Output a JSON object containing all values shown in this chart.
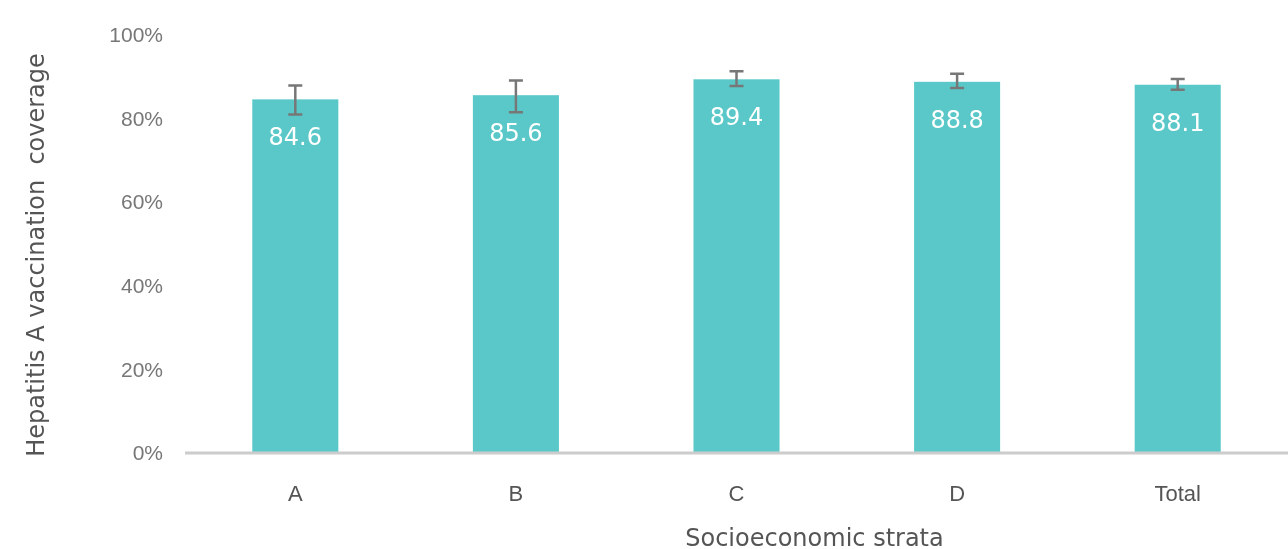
{
  "chart_data": {
    "type": "bar",
    "xlabel": "Socioeconomic strata",
    "ylabel": "Hepatitis A vaccination  coverage",
    "categories": [
      "A",
      "B",
      "C",
      "D",
      "Total"
    ],
    "values": [
      84.6,
      85.6,
      89.4,
      88.8,
      88.1
    ],
    "errors": [
      [
        81.0,
        87.9
      ],
      [
        81.5,
        89.1
      ],
      [
        87.8,
        91.3
      ],
      [
        87.3,
        90.7
      ],
      [
        86.9,
        89.5
      ]
    ],
    "color": "#5ac8c8",
    "data_labels": true,
    "ylim": [
      0,
      100
    ],
    "yticks": [
      {
        "value": 0,
        "label": "0%"
      },
      {
        "value": 20,
        "label": "20%"
      },
      {
        "value": 40,
        "label": "40%"
      },
      {
        "value": 60,
        "label": "60%"
      },
      {
        "value": 80,
        "label": "80%"
      },
      {
        "value": 100,
        "label": "100%"
      }
    ],
    "grid": false
  }
}
